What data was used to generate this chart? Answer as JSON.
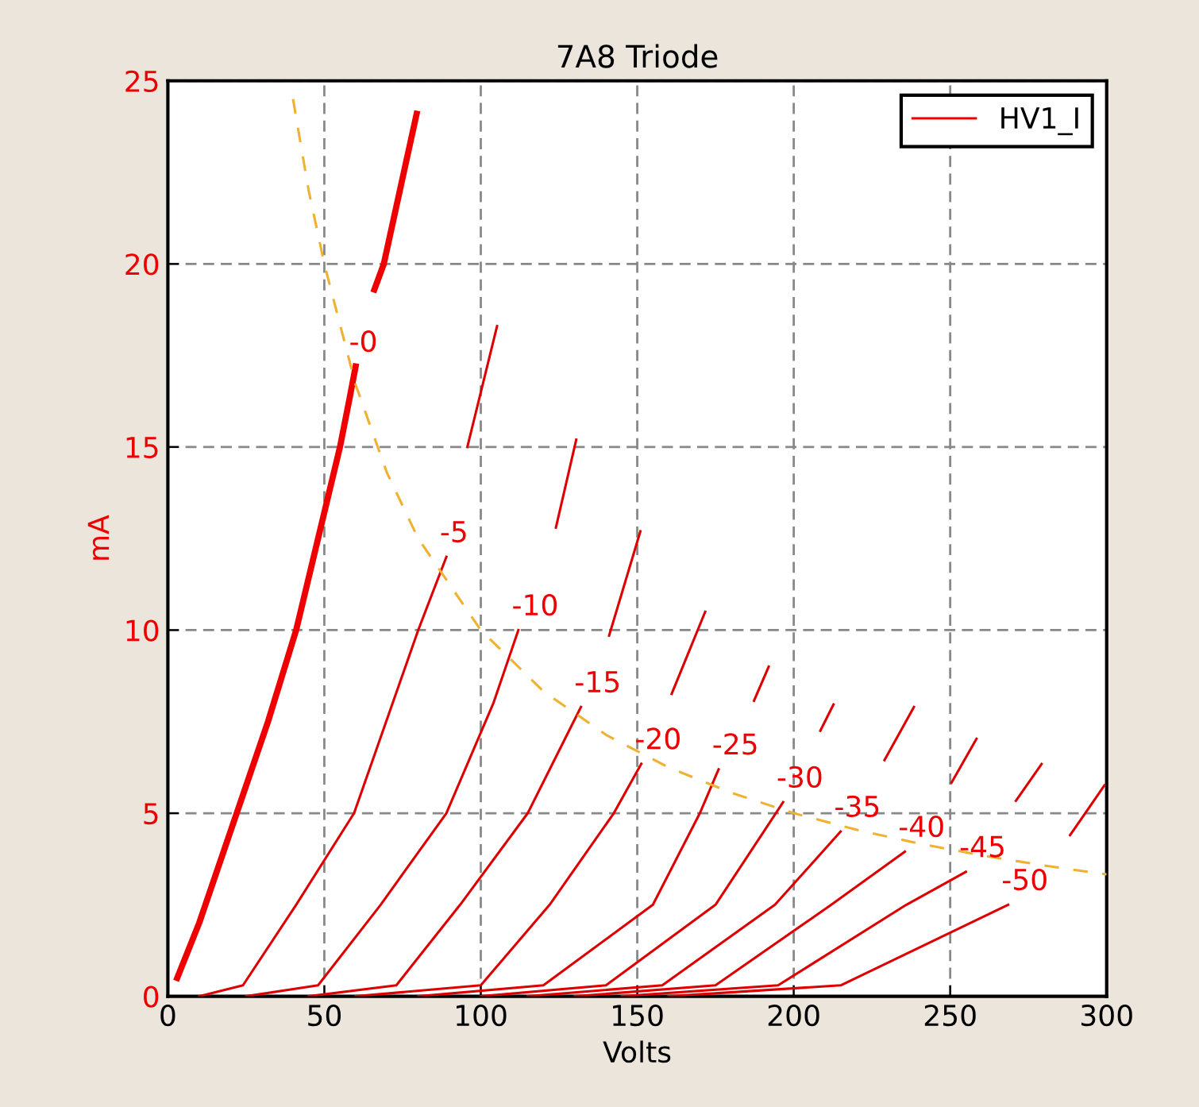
{
  "chart_data": {
    "type": "line",
    "title": "7A8 Triode",
    "xlabel": "Volts",
    "ylabel": "mA",
    "xlim": [
      0,
      300
    ],
    "ylim": [
      0,
      25
    ],
    "xticks": [
      0,
      50,
      100,
      150,
      200,
      250,
      300
    ],
    "yticks": [
      0,
      5,
      10,
      15,
      20,
      25
    ],
    "grid": true,
    "legend": "top right",
    "line_style": "solid",
    "marker": "none",
    "series": [
      {
        "name": "HV1_I",
        "color": "#ee0000",
        "x": [
          3,
          10,
          22,
          32,
          41,
          55,
          58,
          60,
          62,
          66,
          69,
          79.5
        ],
        "values": [
          0.5,
          2,
          5,
          7.5,
          10,
          15,
          16.3,
          17.2,
          null,
          19.3,
          20,
          24.1
        ]
      },
      {
        "color": "#dd0000",
        "x": [
          10,
          24,
          41,
          59.5,
          80,
          89,
          92,
          95.7,
          105.2
        ],
        "values": [
          0,
          0.3,
          2.5,
          5,
          10,
          12,
          null,
          15,
          18.3
        ]
      },
      {
        "color": "#dd0000",
        "x": [
          25,
          48,
          68,
          89,
          104,
          112,
          118,
          124,
          130.5
        ],
        "values": [
          0,
          0.3,
          2.5,
          5,
          8,
          10,
          null,
          12.8,
          15.2
        ]
      },
      {
        "color": "#dd0000",
        "x": [
          45,
          73,
          93.4,
          115,
          132,
          136,
          141,
          151
        ],
        "values": [
          0,
          0.3,
          2.5,
          5,
          7.9,
          null,
          9.85,
          12.7
        ]
      },
      {
        "color": "#dd0000",
        "x": [
          60,
          100,
          122,
          142.5,
          151.3,
          156,
          161,
          171.7
        ],
        "values": [
          0,
          0.3,
          2.5,
          5,
          6.35,
          null,
          8.26,
          10.5
        ]
      },
      {
        "color": "#dd0000",
        "x": [
          80,
          120,
          155,
          170,
          176,
          182,
          187.3,
          192
        ],
        "values": [
          0,
          0.3,
          2.5,
          5,
          6.2,
          null,
          8.07,
          9.0
        ]
      },
      {
        "color": "#dd0000",
        "x": [
          100,
          140,
          175,
          196.6,
          202,
          208.5,
          212.7
        ],
        "values": [
          0,
          0.3,
          2.5,
          5.3,
          null,
          7.25,
          7.97
        ]
      },
      {
        "color": "#dd0000",
        "x": [
          115,
          158,
          194,
          215,
          222,
          229,
          238.4
        ],
        "values": [
          0,
          0.3,
          2.5,
          4.5,
          null,
          6.45,
          7.9
        ]
      },
      {
        "color": "#dd0000",
        "x": [
          130,
          175,
          212,
          235.5,
          243,
          250.4,
          258.4
        ],
        "values": [
          0,
          0.3,
          2.5,
          3.95,
          null,
          5.83,
          7.03
        ]
      },
      {
        "color": "#dd0000",
        "x": [
          145,
          195,
          236,
          255,
          263,
          271,
          279.2
        ],
        "values": [
          0,
          0.3,
          2.5,
          3.4,
          null,
          5.34,
          6.34
        ]
      },
      {
        "color": "#dd0000",
        "x": [
          160,
          215,
          268.5,
          280,
          288.3,
          299.3
        ],
        "values": [
          0,
          0.3,
          2.5,
          null,
          4.4,
          5.76
        ]
      },
      {
        "color": "#f0b030",
        "line_style": "dashed",
        "x": [
          40,
          45,
          50,
          60,
          70,
          80,
          100,
          120,
          140,
          160,
          180,
          200,
          220,
          240,
          260,
          280,
          300
        ],
        "values": [
          24.5,
          22,
          20,
          16.7,
          14.3,
          12.5,
          10,
          8.33,
          7.14,
          6.25,
          5.56,
          5,
          4.55,
          4.17,
          3.85,
          3.57,
          3.33
        ]
      }
    ],
    "annotations": [
      {
        "text": "-0",
        "x": 60,
        "y": 17.2
      },
      {
        "text": "-5",
        "x": 89,
        "y": 12
      },
      {
        "text": "-10",
        "x": 112,
        "y": 10
      },
      {
        "text": "-15",
        "x": 132,
        "y": 7.9
      },
      {
        "text": "-20",
        "x": 151.3,
        "y": 6.35
      },
      {
        "text": "-25",
        "x": 176,
        "y": 6.2
      },
      {
        "text": "-30",
        "x": 196.6,
        "y": 5.3
      },
      {
        "text": "-35",
        "x": 215,
        "y": 4.5
      },
      {
        "text": "-40",
        "x": 235.5,
        "y": 3.95
      },
      {
        "text": "-45",
        "x": 255,
        "y": 3.4
      },
      {
        "text": "-50",
        "x": 268.5,
        "y": 2.5
      }
    ]
  }
}
